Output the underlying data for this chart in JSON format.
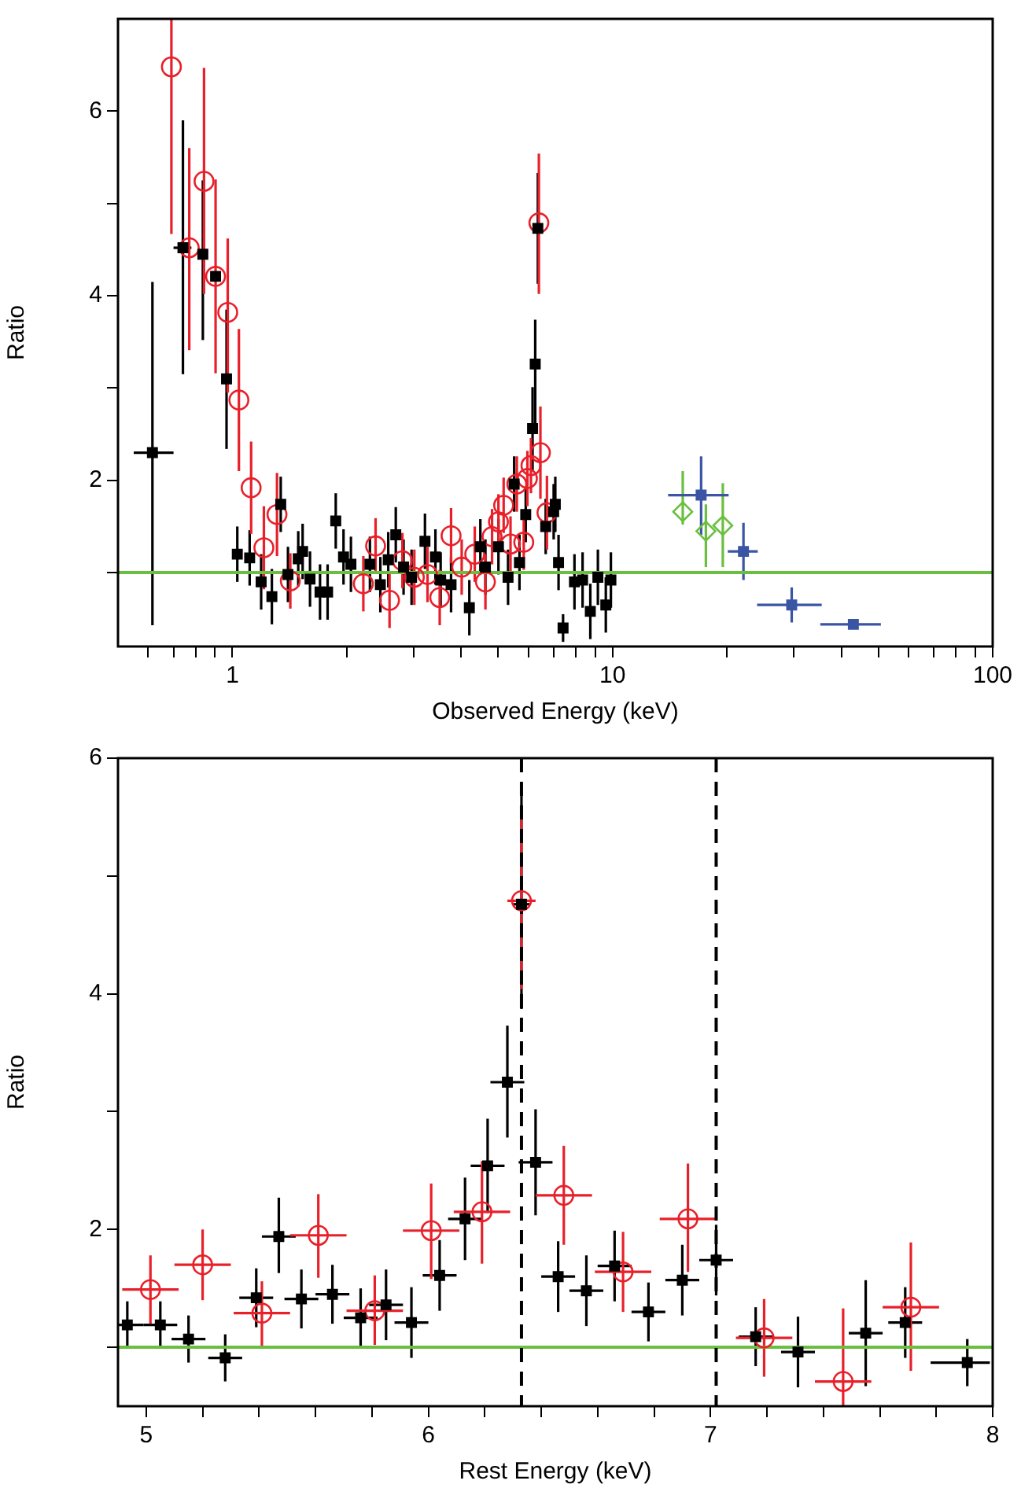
{
  "chart_data": [
    {
      "type": "scatter",
      "xlabel": "Observed Energy (keV)",
      "ylabel": "Ratio",
      "log": "x",
      "grid": false,
      "legend": false,
      "xlim": [
        0.5,
        100
      ],
      "xticks": [
        {
          "value": 0.6,
          "label": null
        },
        {
          "value": 0.7,
          "label": null
        },
        {
          "value": 0.8,
          "label": null
        },
        {
          "value": 0.9,
          "label": null
        },
        1,
        {
          "value": 2,
          "label": null
        },
        {
          "value": 3,
          "label": null
        },
        {
          "value": 4,
          "label": null
        },
        {
          "value": 5,
          "label": null
        },
        {
          "value": 6,
          "label": null
        },
        {
          "value": 7,
          "label": null
        },
        {
          "value": 8,
          "label": null
        },
        {
          "value": 9,
          "label": null
        },
        10,
        {
          "value": 20,
          "label": null
        },
        {
          "value": 30,
          "label": null
        },
        {
          "value": 40,
          "label": null
        },
        {
          "value": 50,
          "label": null
        },
        {
          "value": 60,
          "label": null
        },
        {
          "value": 70,
          "label": null
        },
        {
          "value": 80,
          "label": null
        },
        {
          "value": 90,
          "label": null
        },
        100
      ],
      "ylim": [
        0.2,
        7
      ],
      "yticks": [
        {
          "value": 1,
          "label": null
        },
        2,
        {
          "value": 3,
          "label": null
        },
        4,
        {
          "value": 5,
          "label": null
        },
        6
      ],
      "ref_lines": [
        {
          "axis": "y",
          "value": 1,
          "color": "#6abf40",
          "line_style": "solid"
        }
      ],
      "series": [
        {
          "color": "#000000",
          "marker": "square",
          "x": [
            0.616,
            0.741,
            0.836,
            0.903,
            0.965,
            1.03,
            1.11,
            1.19,
            1.27,
            1.34,
            1.4,
            1.49,
            1.53,
            1.6,
            1.7,
            1.78,
            1.87,
            1.96,
            2.05,
            2.3,
            2.45,
            2.57,
            2.69,
            2.82,
            2.96,
            3.21,
            3.42,
            3.53,
            3.76,
            4.2,
            4.49,
            4.63,
            5.01,
            5.31,
            5.51,
            5.69,
            5.91,
            6.16,
            6.26,
            6.36,
            6.67,
            7.0,
            7.07,
            7.21,
            7.41,
            7.94,
            8.34,
            8.74,
            9.15,
            9.6,
            9.9
          ],
          "values": [
            2.3,
            4.52,
            4.45,
            4.21,
            3.1,
            1.2,
            1.16,
            0.9,
            0.74,
            1.74,
            0.98,
            1.15,
            1.23,
            0.93,
            0.79,
            0.79,
            1.56,
            1.17,
            1.09,
            1.09,
            0.87,
            1.14,
            1.41,
            1.06,
            0.95,
            1.34,
            1.17,
            0.92,
            0.87,
            0.62,
            1.28,
            1.06,
            1.28,
            0.95,
            1.96,
            1.11,
            1.63,
            2.56,
            3.26,
            4.73,
            1.5,
            1.66,
            1.74,
            1.11,
            0.4,
            0.9,
            0.92,
            0.58,
            0.95,
            0.65,
            0.92
          ],
          "errors": [
            [
              0.43,
              4.15
            ],
            [
              3.15,
              5.9
            ],
            [
              3.52,
              5.25
            ],
            null,
            [
              2.34,
              3.85
            ],
            0.3,
            0.3,
            0.3,
            0.3,
            0.3,
            0.3,
            0.3,
            0.3,
            0.3,
            0.3,
            0.3,
            0.3,
            0.3,
            0.3,
            0.3,
            0.3,
            0.3,
            0.3,
            0.3,
            0.3,
            0.3,
            0.3,
            0.3,
            0.3,
            0.3,
            0.3,
            0.3,
            0.3,
            0.3,
            0.3,
            0.3,
            0.3,
            0.45,
            [
              2.6,
              3.74
            ],
            0.6,
            0.3,
            0.3,
            0.3,
            0.3,
            0.15,
            0.3,
            0.3,
            0.3,
            0.3,
            0.3,
            0.3
          ],
          "xerrors": [
            [
              0.55,
              0.7
            ],
            [
              0.7,
              0.78
            ],
            null,
            null,
            null,
            null,
            null,
            null,
            null,
            null,
            null,
            null,
            null,
            null,
            null,
            null,
            null,
            null,
            null,
            null,
            null,
            null,
            null,
            null,
            null,
            null,
            null,
            null,
            null,
            null,
            null,
            null,
            null,
            null,
            null,
            null,
            null,
            null,
            null,
            null,
            null,
            null,
            null,
            null,
            null,
            null,
            null,
            null,
            null,
            null,
            null
          ]
        },
        {
          "color": "#e8202a",
          "marker": "circle",
          "x": [
            0.691,
            0.77,
            0.842,
            0.903,
            0.972,
            1.04,
            1.12,
            1.21,
            1.31,
            1.42,
            2.21,
            2.38,
            2.59,
            2.8,
            3.01,
            3.26,
            3.51,
            3.76,
            4.01,
            4.34,
            4.63,
            4.82,
            5.01,
            5.17,
            5.39,
            5.6,
            5.84,
            5.97,
            6.1,
            6.4,
            6.46,
            6.72
          ],
          "values": [
            6.48,
            4.52,
            5.24,
            4.21,
            3.82,
            2.87,
            1.92,
            1.27,
            1.63,
            0.91,
            0.88,
            1.29,
            0.7,
            1.13,
            0.95,
            0.98,
            0.73,
            1.4,
            1.06,
            1.2,
            0.9,
            1.39,
            1.55,
            1.73,
            1.31,
            1.96,
            1.33,
            2.02,
            2.16,
            4.79,
            2.3,
            1.65
          ],
          "errors": [
            [
              4.67,
              7.0
            ],
            [
              3.41,
              5.6
            ],
            [
              4.02,
              6.47
            ],
            [
              3.16,
              5.26
            ],
            [
              2.95,
              4.62
            ],
            [
              2.1,
              3.64
            ],
            0.5,
            0.45,
            0.45,
            0.3,
            0.3,
            0.3,
            0.3,
            0.3,
            0.3,
            0.3,
            0.3,
            0.3,
            0.3,
            0.3,
            0.3,
            0.3,
            0.3,
            0.3,
            0.3,
            0.3,
            0.3,
            0.3,
            0.3,
            [
              4.02,
              5.54
            ],
            0.5,
            0.4
          ]
        },
        {
          "color": "#6abf40",
          "marker": "diamond",
          "x": [
            15.3,
            17.6,
            19.5
          ],
          "values": [
            1.66,
            1.45,
            1.51
          ],
          "errors": [
            [
              1.52,
              2.1
            ],
            [
              1.06,
              1.74
            ],
            [
              1.06,
              1.97
            ]
          ]
        },
        {
          "color": "#3a55a4",
          "marker": "square",
          "x": [
            17.1,
            22.1,
            29.6,
            43.0
          ],
          "values": [
            1.84,
            1.23,
            0.65,
            0.44
          ],
          "errors": [
            [
              1.41,
              2.26
            ],
            [
              0.92,
              1.54
            ],
            [
              0.46,
              0.84
            ],
            0.05
          ],
          "xerrors": [
            [
              14.0,
              20.2
            ],
            [
              20.1,
              24.1
            ],
            [
              24.0,
              35.5
            ],
            [
              35.2,
              50.8
            ]
          ]
        }
      ]
    },
    {
      "type": "scatter",
      "xlabel": "Rest Energy (keV)",
      "ylabel": "Ratio",
      "grid": false,
      "legend": false,
      "xlim": [
        4.9,
        8
      ],
      "xticks": [
        5,
        {
          "value": 5.2,
          "label": null
        },
        {
          "value": 5.4,
          "label": null
        },
        {
          "value": 5.6,
          "label": null
        },
        {
          "value": 5.8,
          "label": null
        },
        6,
        {
          "value": 6.2,
          "label": null
        },
        {
          "value": 6.4,
          "label": null
        },
        {
          "value": 6.6,
          "label": null
        },
        {
          "value": 6.8,
          "label": null
        },
        7,
        {
          "value": 7.2,
          "label": null
        },
        {
          "value": 7.4,
          "label": null
        },
        {
          "value": 7.6,
          "label": null
        },
        {
          "value": 7.8,
          "label": null
        },
        8
      ],
      "ylim": [
        0.5,
        6
      ],
      "yticks": [
        {
          "value": 1,
          "label": null
        },
        2,
        {
          "value": 3,
          "label": null
        },
        4,
        {
          "value": 5,
          "label": null
        },
        6
      ],
      "ref_lines": [
        {
          "axis": "y",
          "value": 1,
          "color": "#6abf40",
          "line_style": "solid"
        },
        {
          "axis": "x",
          "value": 6.33,
          "color": "#000000",
          "line_style": "dashed"
        },
        {
          "axis": "x",
          "value": 7.02,
          "color": "#000000",
          "line_style": "dashed"
        }
      ],
      "series": [
        {
          "color": "#000000",
          "marker": "square",
          "x": [
            4.933,
            5.05,
            5.15,
            5.28,
            5.39,
            5.47,
            5.55,
            5.66,
            5.76,
            5.85,
            5.94,
            6.04,
            6.13,
            6.21,
            6.28,
            6.33,
            6.38,
            6.46,
            6.56,
            6.66,
            6.78,
            6.9,
            7.02,
            7.16,
            7.31,
            7.55,
            7.69,
            7.91
          ],
          "values": [
            1.19,
            1.19,
            1.07,
            0.91,
            1.42,
            1.94,
            1.41,
            1.45,
            1.25,
            1.36,
            1.21,
            1.61,
            2.09,
            2.54,
            3.25,
            4.76,
            2.57,
            1.6,
            1.48,
            1.69,
            1.3,
            1.57,
            1.74,
            1.09,
            0.96,
            1.12,
            1.21,
            0.87
          ],
          "errors": [
            0.2,
            0.2,
            0.2,
            0.2,
            0.25,
            [
              1.63,
              2.27
            ],
            0.25,
            0.25,
            0.25,
            0.3,
            0.3,
            0.3,
            0.35,
            0.4,
            [
              2.78,
              3.73
            ],
            [
              3.87,
              5.72
            ],
            0.45,
            0.3,
            0.3,
            0.3,
            0.25,
            0.3,
            0.3,
            0.25,
            0.3,
            0.45,
            0.3,
            0.2
          ],
          "xerrors": [
            [
              4.9,
              4.99
            ],
            0.06,
            0.06,
            0.06,
            0.06,
            0.06,
            0.06,
            0.06,
            0.06,
            0.06,
            0.06,
            0.06,
            0.06,
            0.06,
            0.06,
            0.03,
            0.06,
            0.06,
            0.06,
            0.06,
            0.06,
            0.06,
            0.06,
            0.06,
            0.06,
            0.06,
            0.06,
            [
              7.78,
              7.99
            ]
          ]
        },
        {
          "color": "#e8202a",
          "marker": "circle",
          "x": [
            5.015,
            5.2,
            5.41,
            5.61,
            5.81,
            6.01,
            6.19,
            6.33,
            6.48,
            6.69,
            6.92,
            7.19,
            7.47,
            7.71
          ],
          "values": [
            1.49,
            1.7,
            1.29,
            1.95,
            1.31,
            1.99,
            2.15,
            4.79,
            2.29,
            1.64,
            2.09,
            1.08,
            0.71,
            1.34
          ],
          "errors": [
            [
              1.2,
              1.78
            ],
            [
              1.4,
              2.0
            ],
            [
              1.01,
              1.56
            ],
            [
              1.59,
              2.3
            ],
            [
              1.02,
              1.61
            ],
            [
              1.58,
              2.39
            ],
            [
              1.71,
              2.58
            ],
            [
              4.04,
              5.53
            ],
            [
              1.87,
              2.71
            ],
            [
              1.3,
              1.98
            ],
            [
              1.64,
              2.56
            ],
            [
              0.75,
              1.41
            ],
            [
              0.5,
              1.33
            ],
            [
              0.8,
              1.89
            ]
          ],
          "xerrors": [
            0.1,
            0.1,
            0.1,
            0.1,
            0.1,
            0.1,
            0.1,
            0.05,
            0.1,
            0.1,
            0.1,
            0.1,
            0.1,
            0.1
          ]
        }
      ]
    }
  ]
}
